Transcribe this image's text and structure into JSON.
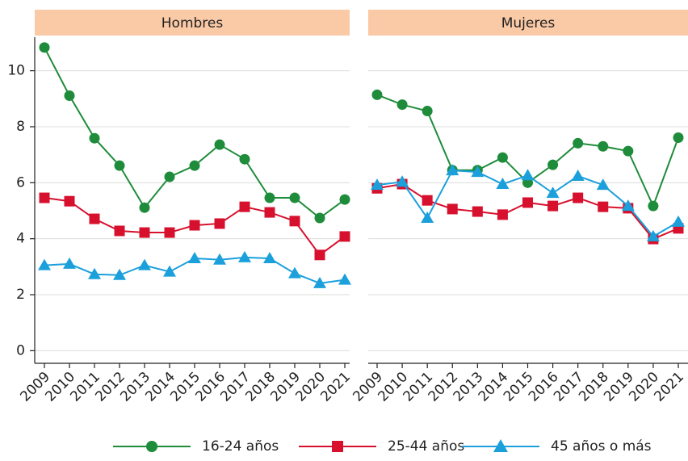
{
  "chart_data": [
    {
      "type": "line",
      "title": "Hombres",
      "x": [
        "2009",
        "2010",
        "2011",
        "2012",
        "2013",
        "2014",
        "2015",
        "2016",
        "2017",
        "2018",
        "2019",
        "2020",
        "2021"
      ],
      "ylim": [
        -0.45,
        11.2
      ],
      "yticks": [
        0,
        2,
        4,
        6,
        8,
        10
      ],
      "grid": true,
      "series": [
        {
          "name": "16-24 años",
          "color": "#1e8c3a",
          "marker": "circle",
          "values": [
            10.83,
            9.11,
            7.59,
            6.61,
            5.11,
            6.21,
            6.61,
            7.36,
            6.84,
            5.46,
            5.46,
            4.74,
            5.4
          ]
        },
        {
          "name": "25-44 años",
          "color": "#d7102e",
          "marker": "square",
          "values": [
            5.46,
            5.34,
            4.71,
            4.28,
            4.22,
            4.22,
            4.48,
            4.54,
            5.14,
            4.94,
            4.63,
            3.42,
            4.08
          ]
        },
        {
          "name": "45 años o más",
          "color": "#1ba0dc",
          "marker": "triangle",
          "values": [
            3.05,
            3.1,
            2.73,
            2.7,
            3.05,
            2.82,
            3.3,
            3.25,
            3.33,
            3.3,
            2.76,
            2.41,
            2.53
          ]
        }
      ]
    },
    {
      "type": "line",
      "title": "Mujeres",
      "x": [
        "2009",
        "2010",
        "2011",
        "2012",
        "2013",
        "2014",
        "2015",
        "2016",
        "2017",
        "2018",
        "2019",
        "2020",
        "2021"
      ],
      "ylim": [
        -0.45,
        11.2
      ],
      "grid": true,
      "series": [
        {
          "color": "#1e8c3a",
          "marker": "circle",
          "values": [
            9.14,
            8.79,
            8.56,
            6.45,
            6.45,
            6.9,
            6.0,
            6.64,
            7.41,
            7.3,
            7.13,
            5.17,
            7.61
          ]
        },
        {
          "color": "#d7102e",
          "marker": "square",
          "values": [
            5.8,
            5.95,
            5.37,
            5.06,
            4.97,
            4.86,
            5.29,
            5.17,
            5.46,
            5.14,
            5.09,
            3.99,
            4.37
          ]
        },
        {
          "color": "#1ba0dc",
          "marker": "triangle",
          "values": [
            5.92,
            6.03,
            4.74,
            6.44,
            6.38,
            5.95,
            6.26,
            5.63,
            6.24,
            5.92,
            5.17,
            4.08,
            4.6
          ]
        }
      ]
    }
  ]
}
